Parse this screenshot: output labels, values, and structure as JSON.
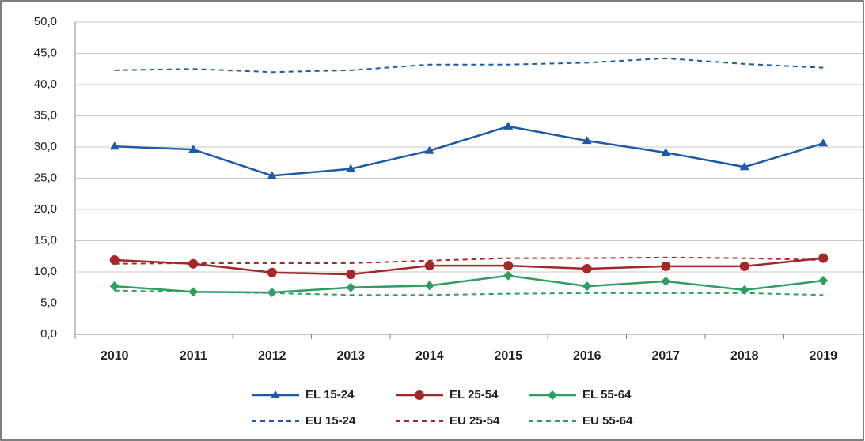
{
  "chart_data": {
    "type": "line",
    "categories": [
      "2010",
      "2011",
      "2012",
      "2013",
      "2014",
      "2015",
      "2016",
      "2017",
      "2018",
      "2019"
    ],
    "ylim": [
      0,
      50
    ],
    "yticks": [
      {
        "value": 0,
        "label": "0,0"
      },
      {
        "value": 5,
        "label": "5,0"
      },
      {
        "value": 10,
        "label": "10,0"
      },
      {
        "value": 15,
        "label": "15,0"
      },
      {
        "value": 20,
        "label": "20,0"
      },
      {
        "value": 25,
        "label": "25,0"
      },
      {
        "value": 30,
        "label": "30,0"
      },
      {
        "value": 35,
        "label": "35,0"
      },
      {
        "value": 40,
        "label": "40,0"
      },
      {
        "value": 45,
        "label": "45,0"
      },
      {
        "value": 50,
        "label": "50,0"
      }
    ],
    "grid": true,
    "legend": "bottom",
    "series": [
      {
        "name": "EL 15-24",
        "color": "#1f5aa6",
        "marker": "triangle",
        "dashed": false,
        "values": [
          30.1,
          29.6,
          25.4,
          26.5,
          29.4,
          33.3,
          31.0,
          29.1,
          26.8,
          30.6
        ]
      },
      {
        "name": "EL 25-54",
        "color": "#a3282a",
        "marker": "circle",
        "dashed": false,
        "values": [
          11.9,
          11.3,
          9.9,
          9.6,
          11.0,
          11.0,
          10.5,
          10.9,
          10.9,
          12.2
        ]
      },
      {
        "name": "EL 55-64",
        "color": "#2e9e62",
        "marker": "diamond",
        "dashed": false,
        "values": [
          7.7,
          6.8,
          6.7,
          7.5,
          7.8,
          9.4,
          7.7,
          8.5,
          7.1,
          8.6
        ]
      },
      {
        "name": "EU 15-24",
        "color": "#1f5aa6",
        "marker": "none",
        "dashed": true,
        "values": [
          42.3,
          42.5,
          42.0,
          42.3,
          43.2,
          43.2,
          43.5,
          44.2,
          43.3,
          42.7
        ]
      },
      {
        "name": "EU 25-54",
        "color": "#a3282a",
        "marker": "none",
        "dashed": true,
        "values": [
          11.3,
          11.4,
          11.4,
          11.4,
          11.8,
          12.2,
          12.2,
          12.3,
          12.2,
          11.9
        ]
      },
      {
        "name": "EU 55-64",
        "color": "#2e9e62",
        "marker": "none",
        "dashed": true,
        "values": [
          7.0,
          6.8,
          6.6,
          6.3,
          6.3,
          6.5,
          6.6,
          6.6,
          6.6,
          6.3
        ]
      }
    ]
  }
}
